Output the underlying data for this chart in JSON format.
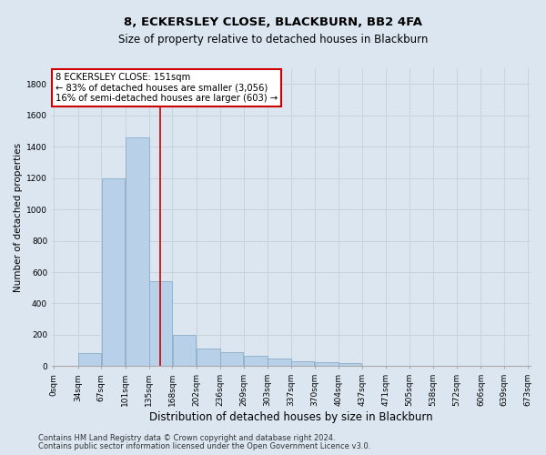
{
  "title1": "8, ECKERSLEY CLOSE, BLACKBURN, BB2 4FA",
  "title2": "Size of property relative to detached houses in Blackburn",
  "xlabel": "Distribution of detached houses by size in Blackburn",
  "ylabel": "Number of detached properties",
  "footnote1": "Contains HM Land Registry data © Crown copyright and database right 2024.",
  "footnote2": "Contains public sector information licensed under the Open Government Licence v3.0.",
  "bin_edges": [
    0,
    34,
    67,
    101,
    135,
    168,
    202,
    236,
    269,
    303,
    337,
    370,
    404,
    437,
    471,
    505,
    538,
    572,
    606,
    639,
    673
  ],
  "bar_heights": [
    0,
    85,
    1200,
    1460,
    540,
    200,
    115,
    90,
    65,
    50,
    30,
    25,
    18,
    0,
    0,
    0,
    0,
    0,
    0,
    0
  ],
  "bar_color": "#b8d0e8",
  "bar_edgecolor": "#8aaec8",
  "grid_color": "#c8d4dc",
  "property_size": 151,
  "redline_color": "#cc0000",
  "annotation_line1": "8 ECKERSLEY CLOSE: 151sqm",
  "annotation_line2": "← 83% of detached houses are smaller (3,056)",
  "annotation_line3": "16% of semi-detached houses are larger (603) →",
  "annotation_box_edgecolor": "#cc0000",
  "annotation_box_facecolor": "#ffffff",
  "ylim": [
    0,
    1900
  ],
  "yticks": [
    0,
    200,
    400,
    600,
    800,
    1000,
    1200,
    1400,
    1600,
    1800
  ],
  "background_color": "#dce6f0",
  "plot_bg_color": "#dce6f0",
  "title1_fontsize": 9.5,
  "title2_fontsize": 8.5,
  "xlabel_fontsize": 8.5,
  "ylabel_fontsize": 7.5,
  "tick_fontsize": 6.5,
  "annotation_fontsize": 7.2,
  "footnote_fontsize": 6.0
}
